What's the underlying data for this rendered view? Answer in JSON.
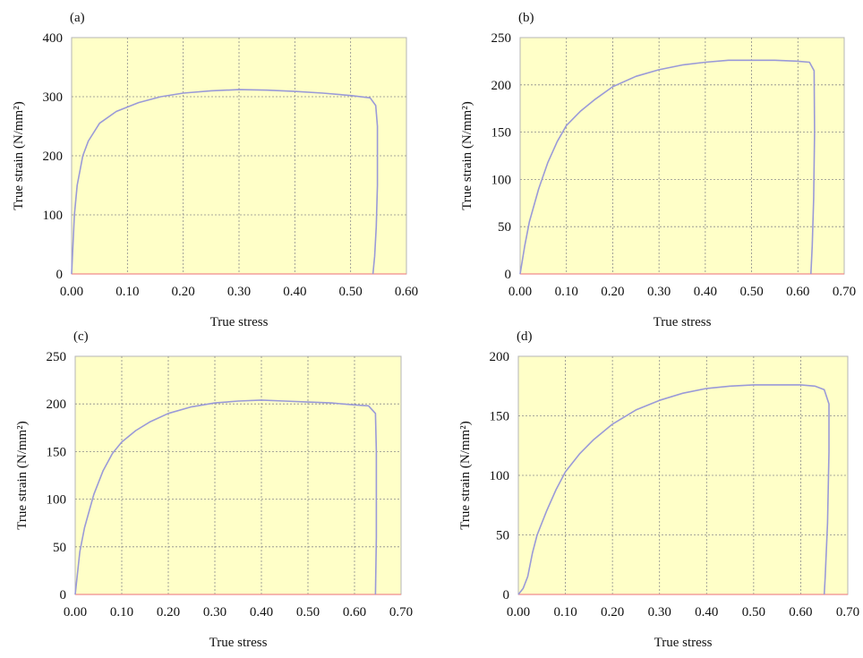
{
  "chart_data": [
    {
      "panel_label": "(a)",
      "type": "line",
      "xlabel": "True stress",
      "ylabel": "True strain (N/mm²)",
      "x_ticks": [
        "0.00",
        "0.10",
        "0.20",
        "0.30",
        "0.40",
        "0.50",
        "0.60"
      ],
      "y_ticks": [
        "0",
        "100",
        "200",
        "300",
        "400"
      ],
      "xlim": [
        0,
        0.6
      ],
      "ylim": [
        0,
        400
      ],
      "grid": true,
      "series": [
        {
          "x": [
            0,
            0.005,
            0.01,
            0.02,
            0.03,
            0.05,
            0.08,
            0.12,
            0.16,
            0.2,
            0.25,
            0.3,
            0.35,
            0.4,
            0.45,
            0.5,
            0.535,
            0.545,
            0.548,
            0.548,
            0.546,
            0.543,
            0.54
          ],
          "y": [
            0,
            100,
            150,
            200,
            225,
            255,
            275,
            290,
            300,
            306,
            310,
            312,
            311,
            309,
            306,
            302,
            298,
            285,
            250,
            150,
            80,
            30,
            0
          ]
        }
      ]
    },
    {
      "panel_label": "(b)",
      "type": "line",
      "xlabel": "True stress",
      "ylabel": "True strain (N/mm²)",
      "x_ticks": [
        "0.00",
        "0.10",
        "0.20",
        "0.30",
        "0.40",
        "0.50",
        "0.60",
        "0.70"
      ],
      "y_ticks": [
        "0",
        "50",
        "100",
        "150",
        "200",
        "250"
      ],
      "xlim": [
        0,
        0.7
      ],
      "ylim": [
        0,
        250
      ],
      "grid": true,
      "series": [
        {
          "x": [
            0,
            0.01,
            0.02,
            0.04,
            0.06,
            0.08,
            0.1,
            0.13,
            0.16,
            0.2,
            0.25,
            0.3,
            0.35,
            0.4,
            0.45,
            0.5,
            0.55,
            0.6,
            0.625,
            0.635,
            0.636,
            0.634,
            0.631,
            0.628
          ],
          "y": [
            0,
            30,
            55,
            90,
            118,
            140,
            157,
            172,
            184,
            198,
            209,
            216,
            221,
            224,
            226,
            226,
            226,
            225,
            224,
            215,
            150,
            80,
            30,
            0
          ]
        }
      ]
    },
    {
      "panel_label": "(c)",
      "type": "line",
      "xlabel": "True stress",
      "ylabel": "True strain (N/mm²)",
      "x_ticks": [
        "0.00",
        "0.10",
        "0.20",
        "0.30",
        "0.40",
        "0.50",
        "0.60",
        "0.70"
      ],
      "y_ticks": [
        "0",
        "50",
        "100",
        "150",
        "200",
        "250"
      ],
      "xlim": [
        0,
        0.7
      ],
      "ylim": [
        0,
        250
      ],
      "grid": true,
      "series": [
        {
          "x": [
            0,
            0.01,
            0.02,
            0.04,
            0.06,
            0.08,
            0.1,
            0.13,
            0.16,
            0.2,
            0.25,
            0.3,
            0.35,
            0.4,
            0.45,
            0.5,
            0.55,
            0.6,
            0.63,
            0.645,
            0.647,
            0.647,
            0.645
          ],
          "y": [
            0,
            45,
            70,
            105,
            130,
            148,
            160,
            172,
            181,
            190,
            197,
            201,
            203,
            204,
            203,
            202,
            201,
            199,
            198,
            190,
            150,
            60,
            0
          ]
        }
      ]
    },
    {
      "panel_label": "(d)",
      "type": "line",
      "xlabel": "True stress",
      "ylabel": "True strain (N/mm²)",
      "x_ticks": [
        "0.00",
        "0.10",
        "0.20",
        "0.30",
        "0.40",
        "0.50",
        "0.60",
        "0.70"
      ],
      "y_ticks": [
        "0",
        "50",
        "100",
        "150",
        "200"
      ],
      "xlim": [
        0,
        0.7
      ],
      "ylim": [
        0,
        200
      ],
      "grid": true,
      "series": [
        {
          "x": [
            0,
            0.01,
            0.02,
            0.03,
            0.04,
            0.06,
            0.08,
            0.1,
            0.13,
            0.16,
            0.2,
            0.25,
            0.3,
            0.35,
            0.4,
            0.45,
            0.5,
            0.55,
            0.6,
            0.63,
            0.65,
            0.66,
            0.66,
            0.657,
            0.652,
            0.65
          ],
          "y": [
            0,
            5,
            15,
            35,
            50,
            70,
            88,
            103,
            118,
            130,
            143,
            155,
            163,
            169,
            173,
            175,
            176,
            176,
            176,
            175,
            172,
            160,
            120,
            60,
            15,
            0
          ]
        }
      ]
    }
  ]
}
